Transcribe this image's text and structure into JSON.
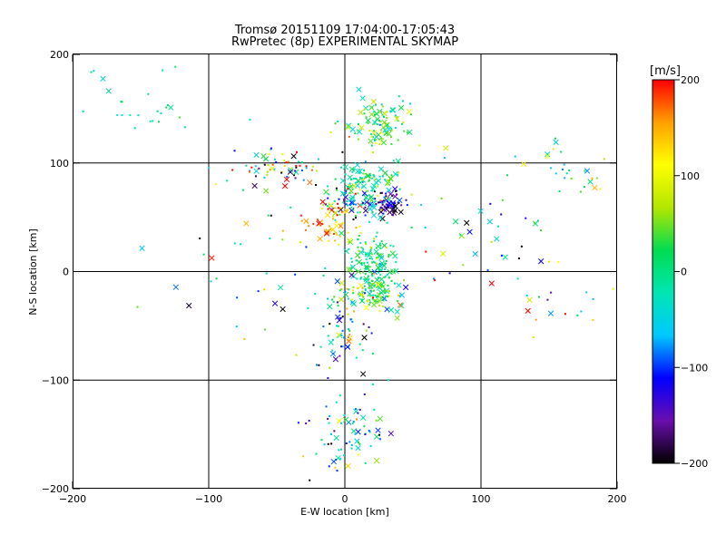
{
  "chart_data": {
    "type": "scatter",
    "title": "Tromsø 20151109 17:04:00-17:05:43",
    "subtitle": "RwPretec (8p) EXPERIMENTAL SKYMAP",
    "xlabel": "E-W location [km]",
    "ylabel": "N-S location [km]",
    "xlim": [
      -200,
      200
    ],
    "ylim": [
      -200,
      200
    ],
    "x_ticks": [
      -200,
      -100,
      0,
      100,
      200
    ],
    "y_ticks": [
      -200,
      -100,
      0,
      100,
      200
    ],
    "grid": true,
    "colorbar": {
      "label": "[m/s]",
      "range": [
        -200,
        200
      ],
      "ticks": [
        -200,
        -100,
        0,
        100,
        200
      ],
      "colors": [
        "#000000",
        "#6a0dad",
        "#0000ff",
        "#00c8ff",
        "#00e6b4",
        "#00dc50",
        "#b4e600",
        "#ffff00",
        "#ffa000",
        "#ff0000"
      ]
    },
    "clusters": [
      {
        "x": 20,
        "y": 5,
        "sx": 9,
        "sy": 15,
        "n": 150,
        "v": 10,
        "vs": 35
      },
      {
        "x": 20,
        "y": -22,
        "sx": 12,
        "sy": 8,
        "n": 100,
        "v": 30,
        "vs": 70
      },
      {
        "x": 30,
        "y": 62,
        "sx": 7,
        "sy": 5,
        "n": 70,
        "v": -160,
        "vs": 50
      },
      {
        "x": 8,
        "y": 65,
        "sx": 12,
        "sy": 10,
        "n": 90,
        "v": -40,
        "vs": 90
      },
      {
        "x": 25,
        "y": 135,
        "sx": 14,
        "sy": 12,
        "n": 110,
        "v": 30,
        "vs": 50
      },
      {
        "x": 15,
        "y": 88,
        "sx": 12,
        "sy": 6,
        "n": 70,
        "v": 10,
        "vs": 45
      },
      {
        "x": -10,
        "y": 45,
        "sx": 10,
        "sy": 10,
        "n": 55,
        "v": 150,
        "vs": 50
      },
      {
        "x": -45,
        "y": 95,
        "sx": 20,
        "sy": 8,
        "n": 65,
        "v": 40,
        "vs": 140
      },
      {
        "x": 5,
        "y": -150,
        "sx": 15,
        "sy": 20,
        "n": 75,
        "v": -40,
        "vs": 80
      },
      {
        "x": 0,
        "y": -55,
        "sx": 10,
        "sy": 20,
        "n": 60,
        "v": -60,
        "vs": 80
      },
      {
        "x": 170,
        "y": 90,
        "sx": 20,
        "sy": 15,
        "n": 30,
        "v": 20,
        "vs": 70
      },
      {
        "x": -150,
        "y": 155,
        "sx": 25,
        "sy": 15,
        "n": 25,
        "v": 0,
        "vs": 30
      },
      {
        "x": 160,
        "y": -30,
        "sx": 25,
        "sy": 15,
        "n": 18,
        "v": 40,
        "vs": 100
      },
      {
        "x": 100,
        "y": 40,
        "sx": 35,
        "sy": 35,
        "n": 50,
        "v": 0,
        "vs": 110
      },
      {
        "x": -60,
        "y": 30,
        "sx": 45,
        "sy": 45,
        "n": 45,
        "v": 20,
        "vs": 110
      }
    ]
  }
}
